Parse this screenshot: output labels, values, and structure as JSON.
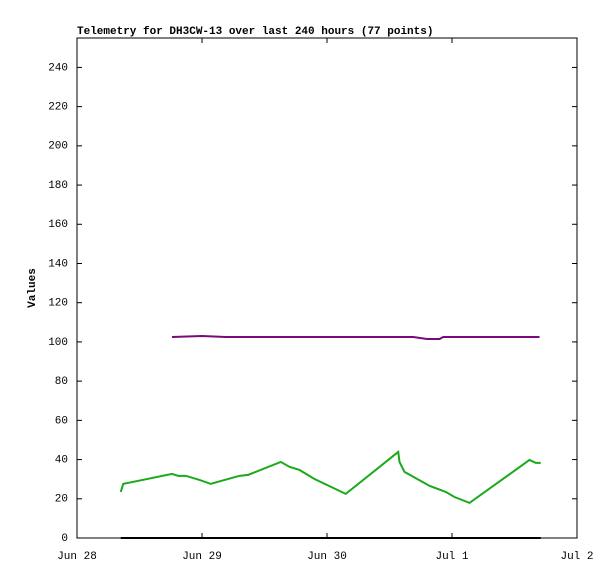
{
  "chart_data": {
    "type": "line",
    "title": "Telemetry for DH3CW-13 over last 240 hours (77 points)",
    "y_label": "Values",
    "xlim": [
      0,
      4
    ],
    "xticks": [
      {
        "value": 0,
        "label": "Jun 28"
      },
      {
        "value": 1,
        "label": "Jun 29"
      },
      {
        "value": 2,
        "label": "Jun 30"
      },
      {
        "value": 3,
        "label": "Jul 1"
      },
      {
        "value": 4,
        "label": "Jul 2"
      }
    ],
    "ylim": [
      0,
      255
    ],
    "yticks": [
      0,
      20,
      40,
      60,
      80,
      100,
      120,
      140,
      160,
      180,
      200,
      220,
      240
    ],
    "series": [
      {
        "color": "#7a0a7a",
        "x": [
          0.76,
          1.0,
          1.19,
          2.69,
          2.8,
          2.9,
          2.93,
          3.7
        ],
        "values": [
          102.5,
          103,
          102.5,
          102.5,
          101.5,
          101.5,
          102.5,
          102.5
        ]
      },
      {
        "color": "#1aaa1a",
        "x": [
          0.35,
          0.37,
          0.76,
          0.81,
          0.87,
          0.98,
          1.07,
          1.3,
          1.37,
          1.63,
          1.7,
          1.78,
          1.9,
          2.15,
          2.57,
          2.58,
          2.62,
          2.82,
          2.95,
          3.02,
          3.14,
          3.62,
          3.67,
          3.71
        ],
        "values": [
          23.5,
          27.6,
          32.7,
          31.7,
          31.7,
          29.6,
          27.6,
          31.7,
          32.2,
          38.8,
          36.3,
          34.7,
          30.1,
          22.5,
          43.9,
          38.8,
          33.7,
          26.6,
          23.5,
          20.9,
          17.9,
          39.8,
          38.3,
          38.3
        ]
      },
      {
        "color": "#000000",
        "x": [
          0.35,
          3.71
        ],
        "values": [
          0,
          0
        ]
      }
    ]
  }
}
